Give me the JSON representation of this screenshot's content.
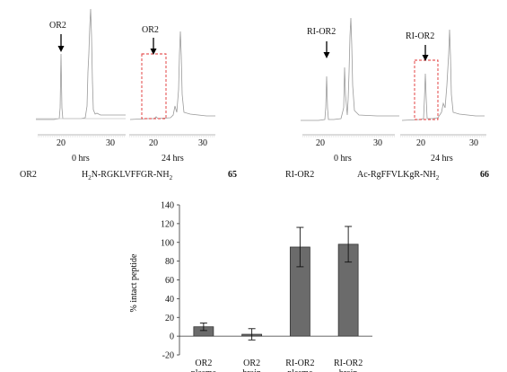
{
  "panel_left": {
    "peak_label": "OR2",
    "time_0": "0 hrs",
    "time_24": "24 hrs",
    "ticks": [
      "20",
      "30",
      "20",
      "30"
    ],
    "name": "OR2",
    "sequence_prefix": "H",
    "sequence_subscript": "2",
    "sequence_rest": "N-RGKLVFFGR-NH",
    "sequence_end_subscript": "2",
    "compound_number": "65"
  },
  "panel_right": {
    "peak_label": "RI-OR2",
    "time_0": "0 hrs",
    "time_24": "24 hrs",
    "ticks": [
      "20",
      "30",
      "20",
      "30"
    ],
    "name": "RI-OR2",
    "sequence_rest": "Ac-RgFFVLKgR-NH",
    "sequence_end_subscript": "2",
    "compound_number": "66"
  },
  "chart_data": {
    "type": "bar",
    "categories": [
      [
        "OR2",
        "plasma"
      ],
      [
        "OR2",
        "brain"
      ],
      [
        "RI-OR2",
        "plasma"
      ],
      [
        "RI-OR2",
        "brain"
      ]
    ],
    "values": [
      10,
      2,
      95,
      98
    ],
    "errors": [
      4,
      6,
      21,
      19
    ],
    "ylabel": "% intact peptide",
    "ylim": [
      -20,
      140
    ],
    "yticks": [
      "-20",
      "0",
      "20",
      "40",
      "60",
      "80",
      "100",
      "120",
      "140"
    ],
    "bar_color": "#6b6b6b"
  }
}
